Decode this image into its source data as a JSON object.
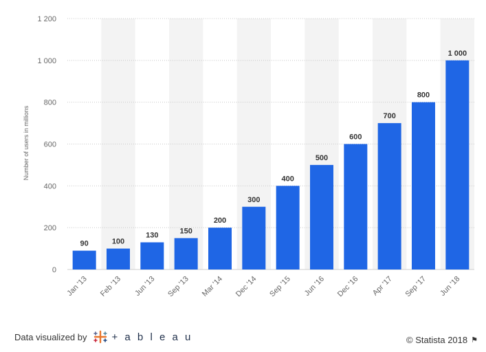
{
  "chart_data": {
    "type": "bar",
    "categories": [
      "Jan '13",
      "Feb '13",
      "Jun '13",
      "Sep '13",
      "Mar '14",
      "Dec '14",
      "Sep '15",
      "Jun '16",
      "Dec '16",
      "Apr '17",
      "Sep '17",
      "Jun '18"
    ],
    "values": [
      90,
      100,
      130,
      150,
      200,
      300,
      400,
      500,
      600,
      700,
      800,
      1000
    ],
    "value_labels": [
      "90",
      "100",
      "130",
      "150",
      "200",
      "300",
      "400",
      "500",
      "600",
      "700",
      "800",
      "1 000"
    ],
    "ylabel": "Number of users in millions",
    "ylim": [
      0,
      1200
    ],
    "yticks": [
      0,
      200,
      400,
      600,
      800,
      1000,
      1200
    ],
    "ytick_labels": [
      "0",
      "200",
      "400",
      "600",
      "800",
      "1 000",
      "1 200"
    ],
    "bar_color": "#1f66e5",
    "band_color": "#f3f3f3",
    "grid": true
  },
  "footer": {
    "left_text": "Data visualized by",
    "tableau_text": "+ a b l e a u",
    "right_text": "© Statista 2018"
  }
}
